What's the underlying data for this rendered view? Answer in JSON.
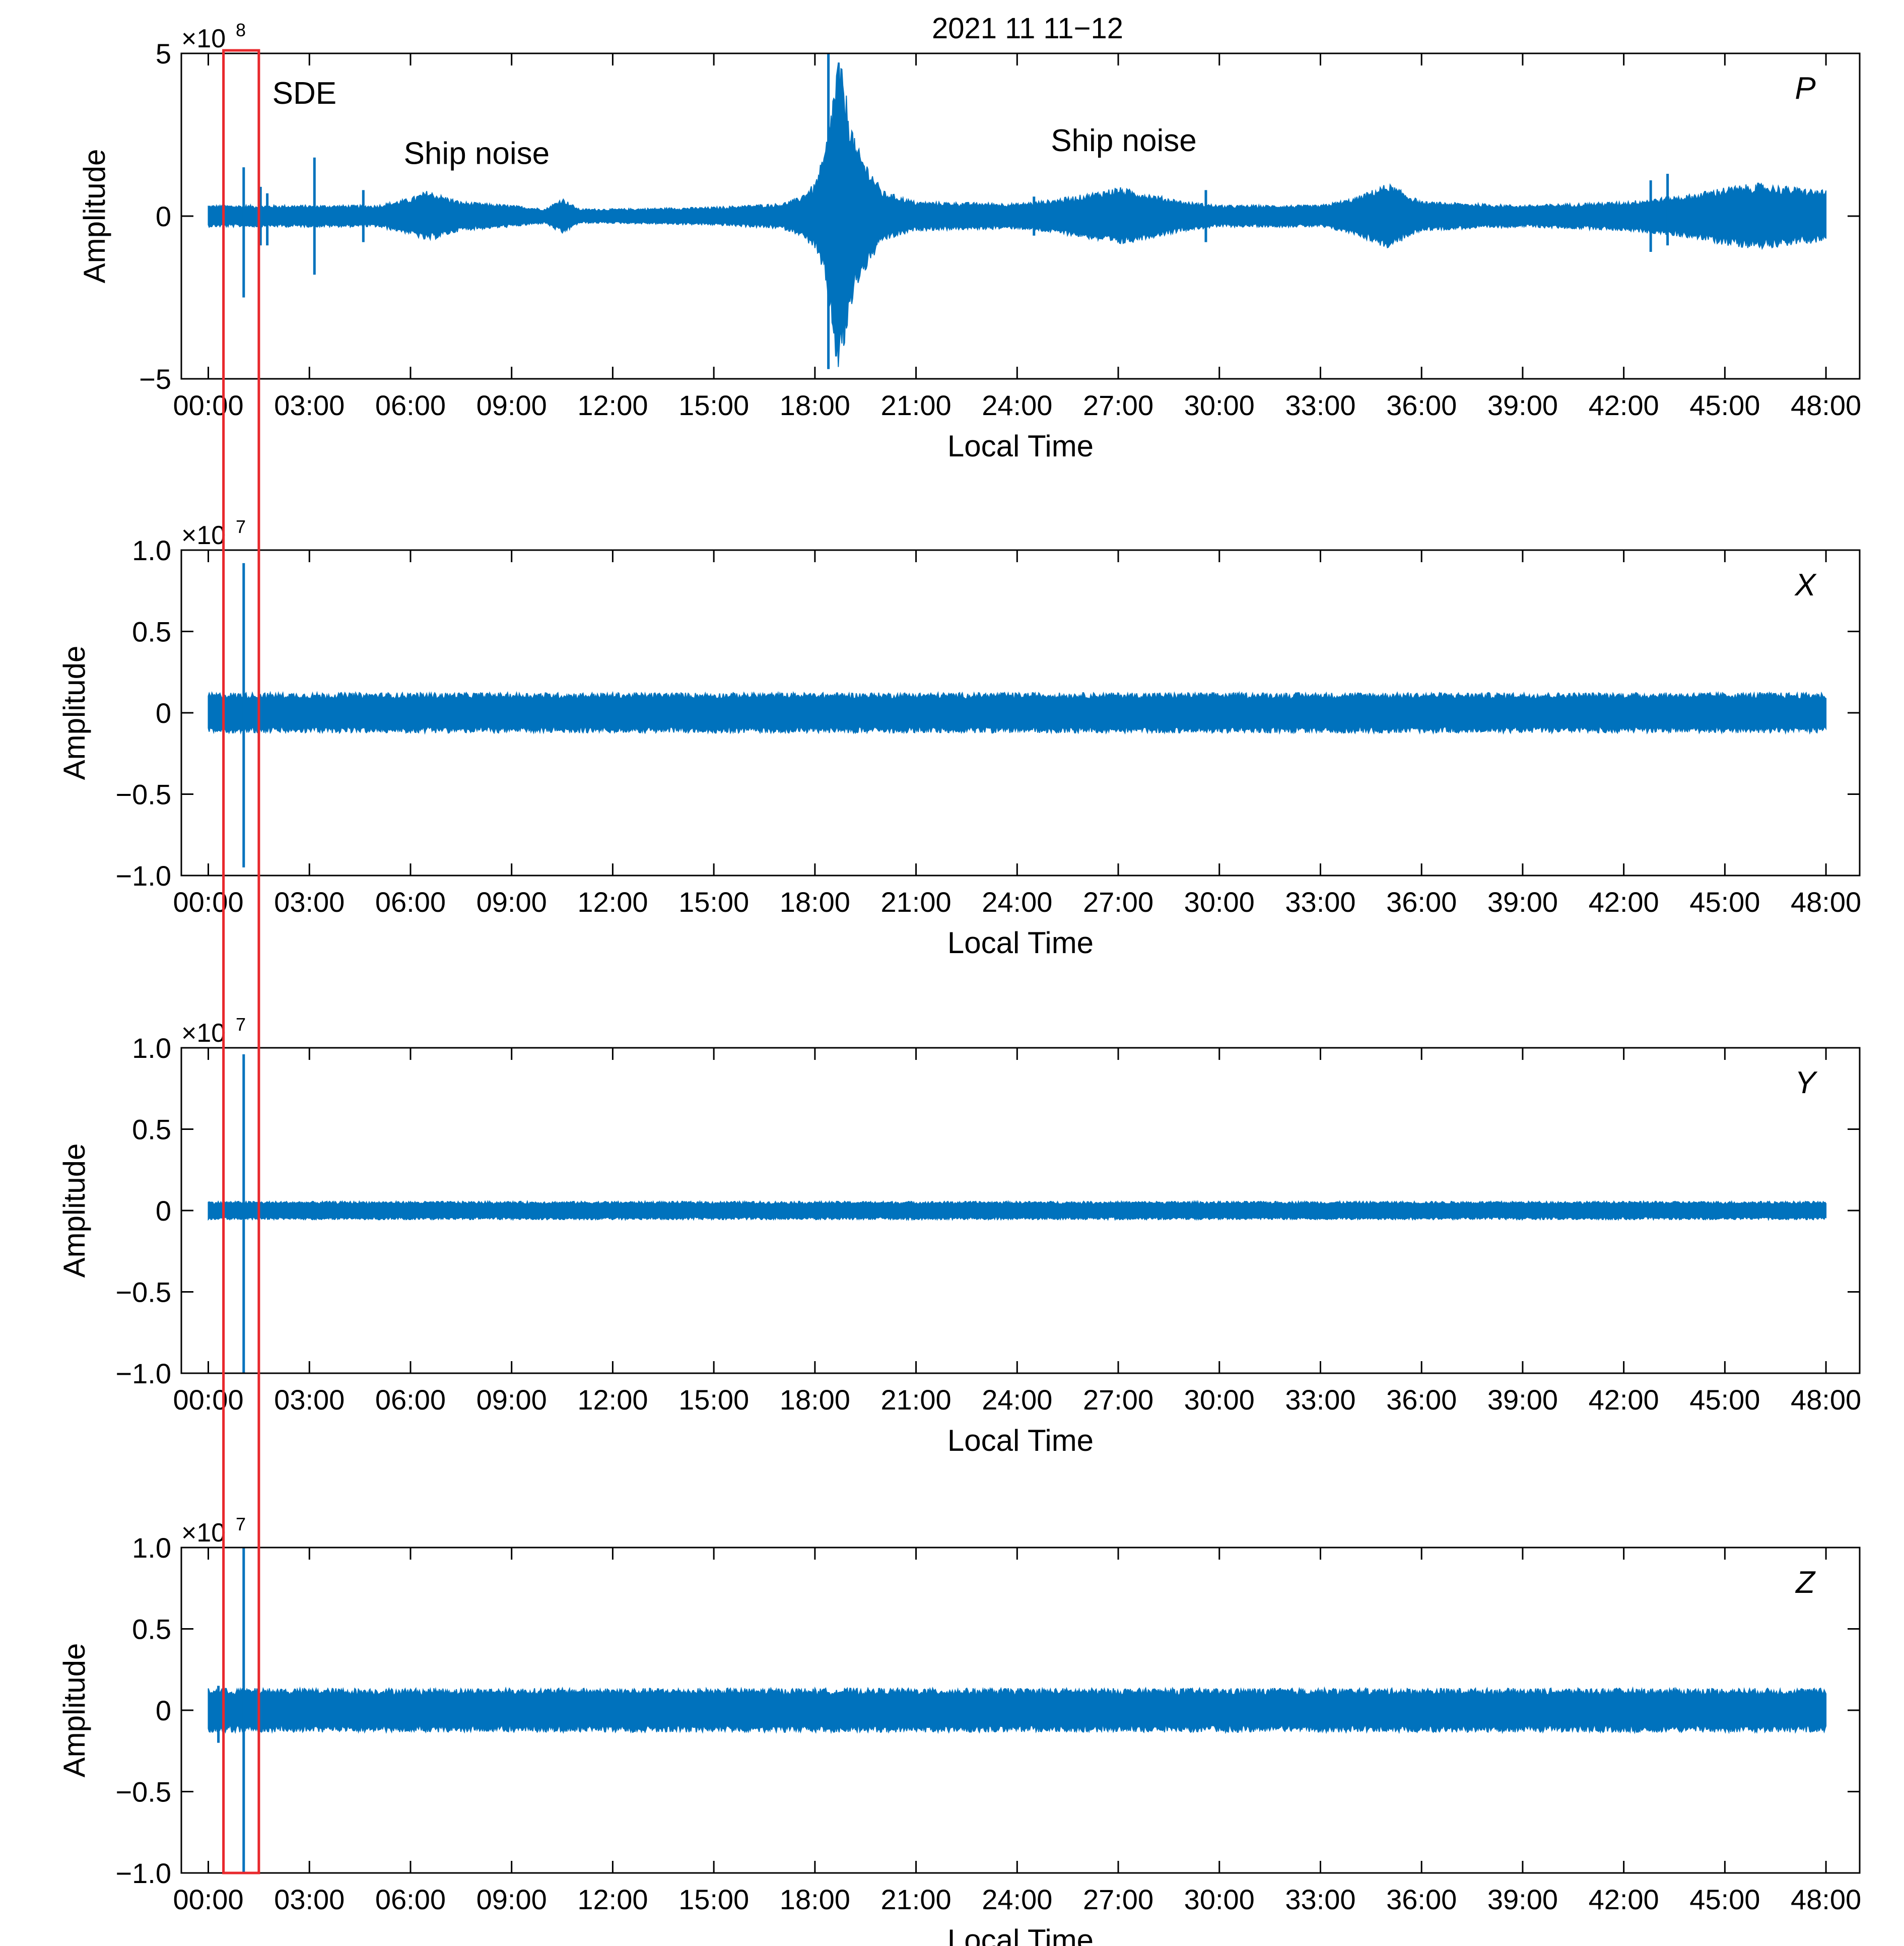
{
  "colors": {
    "trace": "#0072bd",
    "highlight_box": "#e8282c",
    "axis": "#000000",
    "background": "#ffffff"
  },
  "chart_data": {
    "type": "line",
    "title": "2021 11 11−12",
    "xlabel": "Local Time",
    "ylabel": "Amplitude",
    "x_unit": "hours",
    "xlim": [
      -0.8,
      49.0
    ],
    "x_ticks": [
      0,
      3,
      6,
      9,
      12,
      15,
      18,
      21,
      24,
      27,
      30,
      33,
      36,
      39,
      42,
      45,
      48
    ],
    "x_tick_labels": [
      "00:00",
      "03:00",
      "06:00",
      "09:00",
      "12:00",
      "15:00",
      "18:00",
      "21:00",
      "24:00",
      "27:00",
      "30:00",
      "33:00",
      "36:00",
      "39:00",
      "42:00",
      "45:00",
      "48:00"
    ],
    "grid": false,
    "highlight_box": {
      "label": "SDE",
      "x_start": 0.45,
      "x_end": 1.5,
      "spans_all_panels": true
    },
    "panels": [
      {
        "channel": "P",
        "exponent_label": "×10",
        "exponent_power": "8",
        "ylim": [
          -5,
          5
        ],
        "y_ticks": [
          -5,
          0,
          5
        ],
        "y_tick_labels": [
          "−5",
          "0",
          "5"
        ],
        "noise_envelope": {
          "x": [
            0,
            5,
            6,
            6.5,
            7.5,
            9,
            10,
            10.5,
            11,
            12,
            15,
            16,
            17,
            17.5,
            18,
            18.3,
            18.7,
            19.2,
            20,
            21,
            24,
            25,
            26,
            27,
            28,
            29,
            30,
            33,
            34,
            35,
            36,
            39,
            42,
            43,
            44,
            45,
            46,
            47,
            48
          ],
          "amplitude": [
            0.3,
            0.3,
            0.5,
            0.7,
            0.4,
            0.3,
            0.2,
            0.5,
            0.2,
            0.2,
            0.25,
            0.3,
            0.35,
            0.5,
            0.9,
            1.8,
            4.5,
            2.0,
            0.7,
            0.4,
            0.35,
            0.45,
            0.6,
            0.8,
            0.6,
            0.4,
            0.3,
            0.3,
            0.5,
            0.9,
            0.4,
            0.3,
            0.4,
            0.5,
            0.6,
            0.8,
            0.9,
            0.8,
            0.7
          ]
        },
        "spikes": [
          {
            "x": 1.05,
            "min": -2.5,
            "max": 1.5
          },
          {
            "x": 1.55,
            "min": -0.9,
            "max": 0.9
          },
          {
            "x": 1.75,
            "min": -0.9,
            "max": 0.7
          },
          {
            "x": 3.15,
            "min": -1.8,
            "max": 1.8
          },
          {
            "x": 4.6,
            "min": -0.8,
            "max": 0.8
          },
          {
            "x": 18.4,
            "min": -4.7,
            "max": 5.0
          },
          {
            "x": 24.5,
            "min": -0.6,
            "max": 0.6
          },
          {
            "x": 29.6,
            "min": -0.8,
            "max": 0.8
          },
          {
            "x": 42.8,
            "min": -1.1,
            "max": 1.1
          },
          {
            "x": 43.3,
            "min": -0.9,
            "max": 1.3
          }
        ],
        "annotations": [
          {
            "text": "SDE",
            "x": 1.9,
            "y": 3.45
          },
          {
            "text": "Ship noise",
            "x": 5.8,
            "y": 1.6
          },
          {
            "text": "Ship noise",
            "x": 25.0,
            "y": 2.0
          }
        ]
      },
      {
        "channel": "X",
        "exponent_label": "×10",
        "exponent_power": "7",
        "ylim": [
          -1.0,
          1.0
        ],
        "y_ticks": [
          -1.0,
          -0.5,
          0,
          0.5,
          1.0
        ],
        "y_tick_labels": [
          "−1.0",
          "−0.5",
          "0",
          "0.5",
          "1.0"
        ],
        "noise_envelope": {
          "x": [
            0,
            48
          ],
          "amplitude": [
            0.11,
            0.11
          ]
        },
        "spikes": [
          {
            "x": 1.05,
            "min": -0.95,
            "max": 0.92
          }
        ],
        "annotations": []
      },
      {
        "channel": "Y",
        "exponent_label": "×10",
        "exponent_power": "7",
        "ylim": [
          -1.0,
          1.0
        ],
        "y_ticks": [
          -1.0,
          -0.5,
          0,
          0.5,
          1.0
        ],
        "y_tick_labels": [
          "−1.0",
          "−0.5",
          "0",
          "0.5",
          "1.0"
        ],
        "noise_envelope": {
          "x": [
            0,
            48
          ],
          "amplitude": [
            0.05,
            0.05
          ]
        },
        "spikes": [
          {
            "x": 1.05,
            "min": -1.0,
            "max": 0.96
          }
        ],
        "annotations": []
      },
      {
        "channel": "Z",
        "exponent_label": "×10",
        "exponent_power": "7",
        "ylim": [
          -1.0,
          1.0
        ],
        "y_ticks": [
          -1.0,
          -0.5,
          0,
          0.5,
          1.0
        ],
        "y_tick_labels": [
          "−1.0",
          "−0.5",
          "0",
          "0.5",
          "1.0"
        ],
        "noise_envelope": {
          "x": [
            0,
            48
          ],
          "amplitude": [
            0.12,
            0.12
          ]
        },
        "spikes": [
          {
            "x": 1.05,
            "min": -1.0,
            "max": 1.0
          },
          {
            "x": 0.3,
            "min": -0.2,
            "max": 0.15
          }
        ],
        "annotations": []
      }
    ]
  }
}
